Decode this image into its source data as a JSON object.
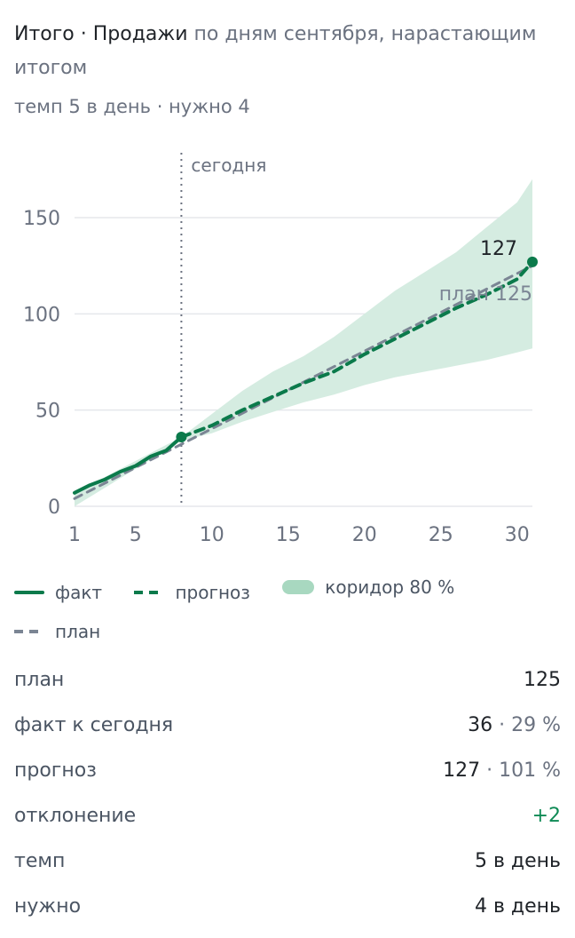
{
  "header": {
    "title_strong": "Итого · Продажи",
    "title_rest": " по дням сентября, нарастающим итогом",
    "subtitle": "темп 5 в день · нужно 4"
  },
  "chart_data": {
    "type": "line",
    "x_ticks": [
      "1",
      "5",
      "10",
      "15",
      "20",
      "25",
      "30"
    ],
    "y_ticks": [
      "0",
      "50",
      "100",
      "150"
    ],
    "xlim": [
      1,
      31
    ],
    "ylim": [
      0,
      180
    ],
    "today": {
      "x": 8,
      "label": "сегодня"
    },
    "series": [
      {
        "name": "факт",
        "x": [
          1,
          2,
          3,
          4,
          5,
          6,
          7,
          8
        ],
        "y": [
          7,
          11,
          14,
          18,
          21,
          26,
          29,
          36
        ]
      },
      {
        "name": "прогноз",
        "x": [
          8,
          10,
          12,
          14,
          16,
          18,
          20,
          22,
          24,
          26,
          28,
          30,
          31
        ],
        "y": [
          36,
          42,
          50,
          57,
          64,
          70,
          79,
          87,
          95,
          103,
          110,
          118,
          127
        ]
      },
      {
        "name": "план",
        "x": [
          1,
          31
        ],
        "y": [
          4,
          125
        ]
      }
    ],
    "band": {
      "name": "коридор 80 %",
      "x": [
        1,
        8,
        10,
        12,
        14,
        16,
        18,
        20,
        22,
        24,
        26,
        28,
        30,
        31
      ],
      "upper": [
        7,
        36,
        48,
        60,
        70,
        78,
        88,
        100,
        112,
        122,
        132,
        145,
        158,
        170
      ],
      "lower": [
        0,
        34,
        38,
        44,
        49,
        54,
        58,
        63,
        67,
        70,
        73,
        76,
        80,
        82
      ]
    },
    "end_labels": {
      "forecast": "127",
      "plan": "план 125"
    },
    "colors": {
      "fact": "#0b7a4b",
      "forecast": "#0b7a4b",
      "plan": "#7b8594",
      "band": "#d5ece1",
      "grid": "#e5e7eb"
    }
  },
  "legend": {
    "fact": "факт",
    "forecast": "прогноз",
    "band": "коридор 80 %",
    "plan": "план"
  },
  "stats": {
    "plan": {
      "label": "план",
      "value": "125"
    },
    "fact_today": {
      "label": "факт к сегодня",
      "value": "36",
      "pct": "· 29 %"
    },
    "forecast": {
      "label": "прогноз",
      "value": "127",
      "pct": "· 101 %"
    },
    "deviation": {
      "label": "отклонение",
      "value": "+2"
    },
    "pace": {
      "label": "темп",
      "value": "5 в день"
    },
    "needed": {
      "label": "нужно",
      "value": "4 в день"
    }
  }
}
